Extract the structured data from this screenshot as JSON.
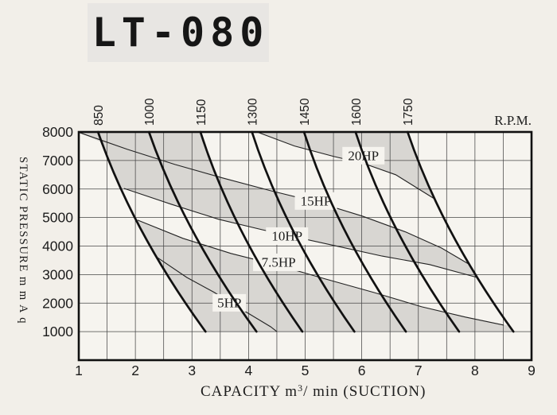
{
  "model": {
    "label": "LT-080"
  },
  "top_axis": {
    "label": "R.P.M.",
    "ticks": [
      850,
      1000,
      1150,
      1300,
      1450,
      1600,
      1750
    ]
  },
  "y_axis": {
    "title": "STATIC PRESSURE  m m A q",
    "ticks": [
      8000,
      7000,
      6000,
      5000,
      4000,
      3000,
      2000,
      1000
    ]
  },
  "x_axis": {
    "title_pre": "CAPACITY  m",
    "title_sup": "3",
    "title_post": "/ min (SUCTION)",
    "ticks": [
      1,
      2,
      3,
      4,
      5,
      6,
      7,
      8,
      9
    ]
  },
  "chart_data": {
    "type": "line",
    "title": "LT-080",
    "xlabel": "CAPACITY m³/min (SUCTION)",
    "ylabel": "STATIC PRESSURE mmAq",
    "x_range": [
      1,
      9
    ],
    "x_grid_step": 0.5,
    "y_range": [
      0,
      8000
    ],
    "y_grid_step": 1000,
    "top_axis_label": "R.P.M.",
    "rpm_curves": [
      {
        "rpm": 850,
        "points": [
          [
            1.34,
            8000
          ],
          [
            3.24,
            1000
          ]
        ]
      },
      {
        "rpm": 1000,
        "points": [
          [
            2.24,
            8000
          ],
          [
            4.14,
            1000
          ]
        ]
      },
      {
        "rpm": 1150,
        "points": [
          [
            3.15,
            8000
          ],
          [
            4.95,
            1000
          ]
        ]
      },
      {
        "rpm": 1300,
        "points": [
          [
            4.06,
            8000
          ],
          [
            5.87,
            1000
          ]
        ]
      },
      {
        "rpm": 1450,
        "points": [
          [
            4.98,
            8000
          ],
          [
            6.78,
            1000
          ]
        ]
      },
      {
        "rpm": 1600,
        "points": [
          [
            5.89,
            8000
          ],
          [
            7.72,
            1000
          ]
        ]
      },
      {
        "rpm": 1750,
        "points": [
          [
            6.81,
            8000
          ],
          [
            8.68,
            1000
          ]
        ]
      }
    ],
    "hp_curves": [
      {
        "label": "20HP",
        "label_at": [
          6.03,
          7170
        ],
        "points": [
          [
            4.15,
            8000
          ],
          [
            4.81,
            7510
          ],
          [
            5.51,
            7140
          ],
          [
            6.03,
            6900
          ],
          [
            6.6,
            6500
          ],
          [
            7.28,
            5660
          ]
        ]
      },
      {
        "label": "15HP",
        "label_at": [
          5.19,
          5580
        ],
        "points": [
          [
            1.01,
            7980
          ],
          [
            1.86,
            7390
          ],
          [
            2.7,
            6860
          ],
          [
            3.54,
            6390
          ],
          [
            4.39,
            5940
          ],
          [
            5.19,
            5550
          ],
          [
            6.01,
            5050
          ],
          [
            6.78,
            4490
          ],
          [
            7.41,
            3930
          ],
          [
            7.89,
            3370
          ]
        ]
      },
      {
        "label": "10HP",
        "label_at": [
          4.68,
          4350
        ],
        "points": [
          [
            1.8,
            6020
          ],
          [
            2.63,
            5470
          ],
          [
            3.47,
            4940
          ],
          [
            4.25,
            4570
          ],
          [
            4.68,
            4380
          ],
          [
            5.51,
            4020
          ],
          [
            6.36,
            3650
          ],
          [
            7.2,
            3350
          ],
          [
            8.04,
            2900
          ]
        ]
      },
      {
        "label": "7.5HP",
        "label_at": [
          4.53,
          3430
        ],
        "points": [
          [
            2.04,
            4910
          ],
          [
            2.84,
            4270
          ],
          [
            3.69,
            3740
          ],
          [
            4.53,
            3320
          ],
          [
            5.37,
            2840
          ],
          [
            6.22,
            2370
          ],
          [
            7.06,
            1870
          ],
          [
            7.83,
            1510
          ],
          [
            8.51,
            1230
          ]
        ]
      },
      {
        "label": "5HP",
        "label_at": [
          3.66,
          2010
        ],
        "points": [
          [
            2.35,
            3650
          ],
          [
            2.91,
            2900
          ],
          [
            3.4,
            2370
          ],
          [
            3.66,
            2040
          ],
          [
            4.04,
            1590
          ],
          [
            4.39,
            1170
          ],
          [
            4.5,
            1000
          ]
        ]
      }
    ],
    "shaded_bands": [
      {
        "between": [
          "8000-line",
          "15HP"
        ],
        "right_clip_rpm": 1150
      },
      {
        "between": [
          "8000-line",
          "20HP"
        ],
        "right_clip_rpm": 1750
      },
      {
        "between": [
          "15HP",
          "10HP"
        ],
        "left_clip_rpm": 850,
        "right_clip_rpm": 1750
      },
      {
        "between": [
          "7.5HP",
          "1000-line"
        ],
        "left_clip_rpm": 850,
        "right_clip_rpm": 1750
      }
    ],
    "colors": {
      "band": "#d8d6d2",
      "curve": "#111111",
      "grid": "#474747",
      "background": "#f2efe9",
      "plot_background": "#f6f4ef",
      "title_box": "#e8e6e3"
    }
  }
}
